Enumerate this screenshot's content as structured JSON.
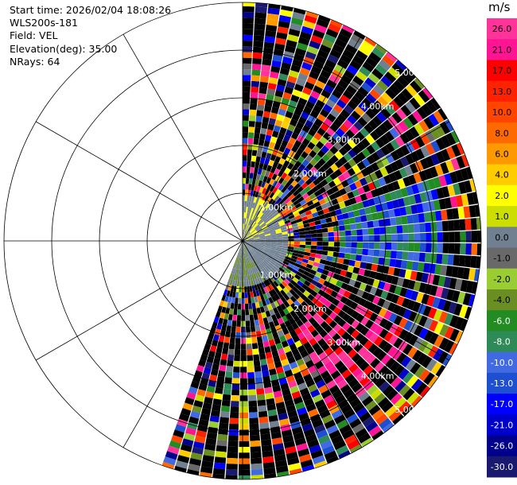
{
  "info": {
    "start_time": "Start time: 2026/02/04 18:08:26",
    "instrument": "WLS200s-181",
    "field": "Field: VEL",
    "elevation": "Elevation(deg): 35.00",
    "nrays": "NRays: 64"
  },
  "chart_data": {
    "type": "heatmap",
    "projection": "polar-ppi",
    "sector_azimuth_deg": [
      0,
      200
    ],
    "ray_count": 64,
    "range_ring_labels": [
      "1.00km",
      "2.00km",
      "3.00km",
      "4.00km",
      "5.00km"
    ],
    "colorbar": {
      "unit": "m/s",
      "ticks": [
        "26.0",
        "21.0",
        "17.0",
        "13.0",
        "10.0",
        "8.0",
        "6.0",
        "4.0",
        "2.0",
        "1.0",
        "0.0",
        "-1.0",
        "-2.0",
        "-4.0",
        "-6.0",
        "-8.0",
        "-10.0",
        "-13.0",
        "-17.0",
        "-21.0",
        "-26.0",
        "-30.0"
      ],
      "colors": [
        "#ff3399",
        "#ff1493",
        "#ff0000",
        "#ff2200",
        "#ff4500",
        "#ff6a00",
        "#ff9900",
        "#ffcc00",
        "#ffff00",
        "#ccdd00",
        "#708090",
        "#696969",
        "#9acd32",
        "#6b8e23",
        "#228b22",
        "#2e8b57",
        "#4169e1",
        "#1e4fd0",
        "#0000ff",
        "#0000cd",
        "#00008b",
        "#191970"
      ]
    }
  }
}
